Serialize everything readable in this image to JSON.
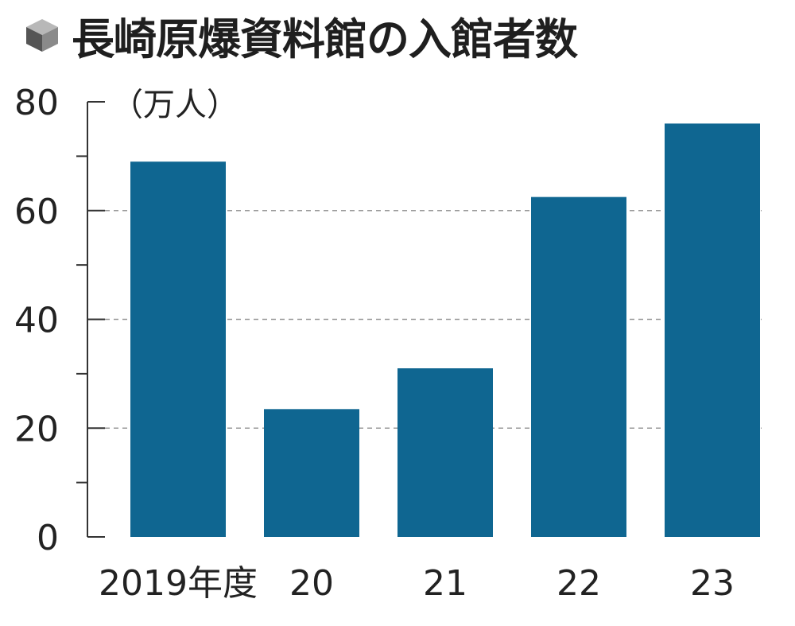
{
  "header": {
    "title": "長崎原爆資料館の入館者数",
    "icon": "cube-icon"
  },
  "chart_data": {
    "type": "bar",
    "title": "長崎原爆資料館の入館者数",
    "ylabel": "（万人）",
    "xlabel": "",
    "categories": [
      "2019年度",
      "20",
      "21",
      "22",
      "23"
    ],
    "values": [
      69,
      23.5,
      31,
      62.5,
      76
    ],
    "ylim": [
      0,
      80
    ],
    "yticks": [
      0,
      20,
      40,
      60,
      80
    ],
    "ytick_labels": [
      "0",
      "20",
      "40",
      "60",
      "80"
    ],
    "grid": "dashed horizontal at 20, 40, 60",
    "bar_color": "#0f6691",
    "grid_color": "#9a9a9a"
  }
}
